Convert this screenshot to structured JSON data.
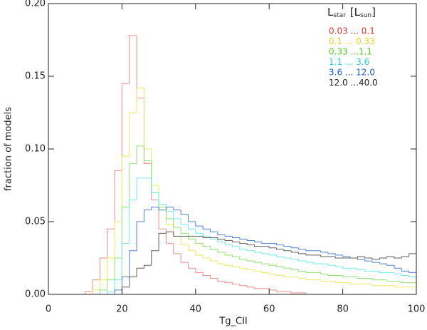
{
  "chart_data": {
    "type": "histogram",
    "xlabel": "Tg_CII",
    "ylabel": "fraction of models",
    "legend_title": [
      "L",
      "star",
      "[L",
      "sun",
      "]"
    ],
    "legend": "upper right",
    "bins": [
      0,
      2,
      4,
      6,
      8,
      10,
      12,
      14,
      16,
      18,
      20,
      22,
      24,
      26,
      28,
      30,
      32,
      34,
      36,
      38,
      40,
      42,
      44,
      46,
      48,
      50,
      52,
      54,
      56,
      58,
      60,
      62,
      64,
      66,
      68,
      70,
      72,
      74,
      76,
      78,
      80,
      82,
      84,
      86,
      88,
      90,
      92,
      94,
      96,
      98,
      100
    ],
    "xlim": [
      0,
      100
    ],
    "xticks": [
      0,
      20,
      40,
      60,
      80,
      100
    ],
    "ylim": [
      0,
      0.2
    ],
    "yticks": [
      {
        "value": 0,
        "label": "0.00"
      },
      {
        "value": 0.05,
        "label": "0.05"
      },
      {
        "value": 0.1,
        "label": "0.10"
      },
      {
        "value": 0.15,
        "label": "0.15"
      },
      {
        "value": 0.2,
        "label": "0.20"
      }
    ],
    "series": [
      {
        "name": "0.03 ... 0.1",
        "color": "#f08a8a",
        "text_color": "#e03030",
        "values": [
          0,
          0,
          0,
          0,
          0,
          0.002,
          0.01,
          0.025,
          0.045,
          0.085,
          0.145,
          0.178,
          0.135,
          0.09,
          0.065,
          0.045,
          0.035,
          0.028,
          0.022,
          0.018,
          0.015,
          0.013,
          0.011,
          0.009,
          0.008,
          0.007,
          0.006,
          0.005,
          0.004,
          0.004,
          0.003,
          0.002,
          0.002,
          0.001,
          0.001,
          0,
          0,
          0,
          0,
          0,
          0,
          0,
          0,
          0,
          0,
          0,
          0,
          0,
          0,
          0
        ]
      },
      {
        "name": "0.1 ... 0.33",
        "color": "#ece860",
        "text_color": "#e8d020",
        "values": [
          0,
          0,
          0,
          0,
          0,
          0,
          0.003,
          0.01,
          0.025,
          0.05,
          0.095,
          0.125,
          0.142,
          0.1,
          0.075,
          0.058,
          0.048,
          0.04,
          0.034,
          0.03,
          0.027,
          0.025,
          0.023,
          0.021,
          0.02,
          0.019,
          0.018,
          0.017,
          0.016,
          0.015,
          0.014,
          0.013,
          0.012,
          0.012,
          0.011,
          0.01,
          0.01,
          0.009,
          0.009,
          0.008,
          0.008,
          0.007,
          0.007,
          0.007,
          0.006,
          0.006,
          0.006,
          0.005,
          0.005,
          0.005
        ]
      },
      {
        "name": "0.33 ...1.1",
        "color": "#90e070",
        "text_color": "#50d020",
        "values": [
          0,
          0,
          0,
          0,
          0,
          0,
          0,
          0.003,
          0.01,
          0.025,
          0.06,
          0.09,
          0.102,
          0.092,
          0.07,
          0.06,
          0.052,
          0.046,
          0.042,
          0.038,
          0.035,
          0.033,
          0.031,
          0.029,
          0.027,
          0.026,
          0.024,
          0.023,
          0.022,
          0.021,
          0.02,
          0.019,
          0.018,
          0.017,
          0.016,
          0.015,
          0.015,
          0.014,
          0.013,
          0.013,
          0.012,
          0.012,
          0.011,
          0.011,
          0.01,
          0.01,
          0.009,
          0.009,
          0.008,
          0.008
        ]
      },
      {
        "name": "1.1 ... 3.6",
        "color": "#70e8f0",
        "text_color": "#20d0e8",
        "values": [
          0,
          0,
          0,
          0,
          0,
          0,
          0,
          0,
          0.002,
          0.01,
          0.035,
          0.065,
          0.08,
          0.08,
          0.07,
          0.062,
          0.057,
          0.052,
          0.048,
          0.045,
          0.042,
          0.04,
          0.038,
          0.036,
          0.034,
          0.033,
          0.031,
          0.03,
          0.029,
          0.028,
          0.027,
          0.026,
          0.025,
          0.024,
          0.023,
          0.022,
          0.021,
          0.021,
          0.02,
          0.019,
          0.018,
          0.018,
          0.017,
          0.016,
          0.016,
          0.015,
          0.015,
          0.014,
          0.013,
          0.012
        ]
      },
      {
        "name": "3.6 ... 12.0",
        "color": "#5080d0",
        "text_color": "#2060d0",
        "values": [
          0,
          0,
          0,
          0,
          0,
          0,
          0,
          0,
          0,
          0.003,
          0.012,
          0.03,
          0.05,
          0.058,
          0.06,
          0.058,
          0.06,
          0.058,
          0.055,
          0.05,
          0.047,
          0.045,
          0.043,
          0.041,
          0.04,
          0.039,
          0.038,
          0.037,
          0.036,
          0.035,
          0.035,
          0.034,
          0.033,
          0.032,
          0.031,
          0.03,
          0.03,
          0.029,
          0.028,
          0.027,
          0.026,
          0.025,
          0.024,
          0.023,
          0.022,
          0.021,
          0.02,
          0.018,
          0.016,
          0.015
        ]
      },
      {
        "name": "12.0 ...40.0",
        "color": "#606060",
        "text_color": "#202020",
        "values": [
          0,
          0,
          0,
          0,
          0,
          0,
          0,
          0,
          0,
          0,
          0.005,
          0.012,
          0.018,
          0.02,
          0.03,
          0.042,
          0.043,
          0.04,
          0.04,
          0.04,
          0.04,
          0.039,
          0.039,
          0.038,
          0.037,
          0.036,
          0.035,
          0.034,
          0.033,
          0.033,
          0.032,
          0.031,
          0.03,
          0.029,
          0.028,
          0.027,
          0.027,
          0.026,
          0.026,
          0.025,
          0.025,
          0.025,
          0.026,
          0.025,
          0.024,
          0.025,
          0.026,
          0.025,
          0.026,
          0.028
        ]
      }
    ]
  }
}
